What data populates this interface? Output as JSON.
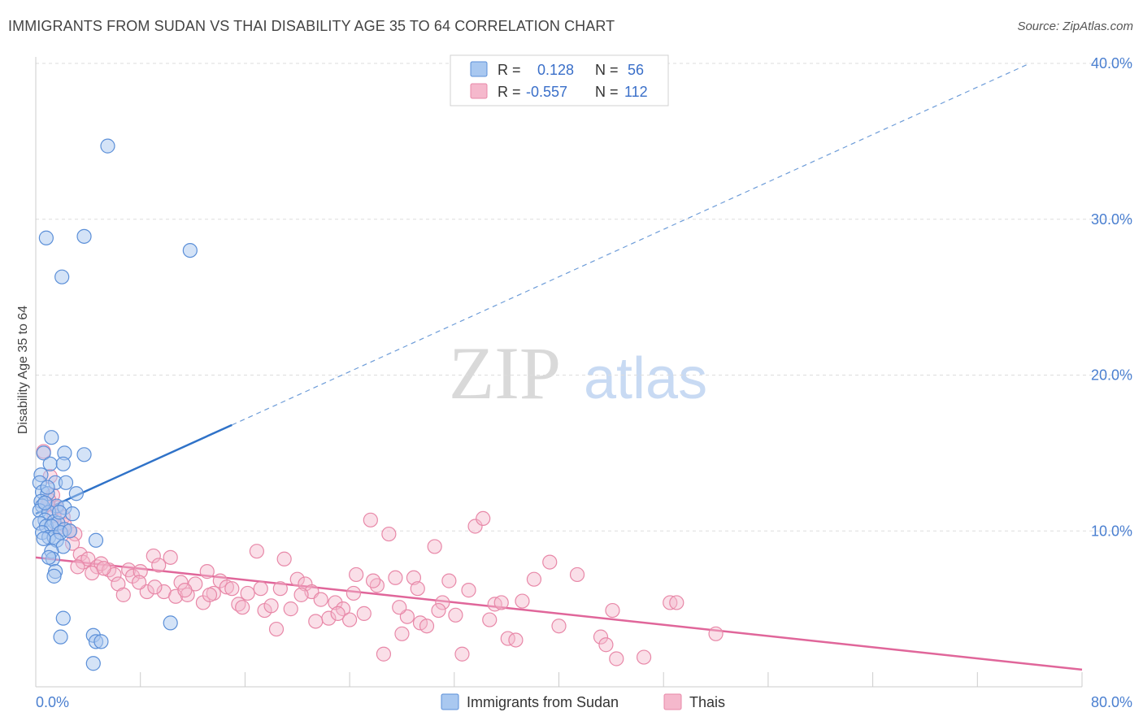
{
  "header": {
    "title": "IMMIGRANTS FROM SUDAN VS THAI DISABILITY AGE 35 TO 64 CORRELATION CHART",
    "source": "Source: ZipAtlas.com"
  },
  "watermark": {
    "zip": "ZIP",
    "atlas": "atlas"
  },
  "colors": {
    "sudan_fill": "#a9c8f0",
    "sudan_stroke": "#5b8fd8",
    "sudan_line": "#2f72c8",
    "thai_fill": "#f5b8cc",
    "thai_stroke": "#e888a8",
    "thai_line": "#e0669a",
    "grid": "#dddddd",
    "tick_text": "#4a7fd0"
  },
  "legend": {
    "rows": [
      {
        "r_label": "R =",
        "r_value": "0.128",
        "n_label": "N =",
        "n_value": "56"
      },
      {
        "r_label": "R =",
        "r_value": "-0.557",
        "n_label": "N =",
        "n_value": "112"
      }
    ]
  },
  "chart_data": {
    "type": "scatter",
    "title": "IMMIGRANTS FROM SUDAN VS THAI DISABILITY AGE 35 TO 64 CORRELATION CHART",
    "xlabel": "",
    "ylabel": "Disability Age 35 to 64",
    "xlim": [
      0,
      80
    ],
    "ylim": [
      0,
      40
    ],
    "x_tick_labels": [
      "0.0%",
      "80.0%"
    ],
    "y_ticks": [
      10,
      20,
      30,
      40
    ],
    "y_tick_labels": [
      "10.0%",
      "20.0%",
      "30.0%",
      "40.0%"
    ],
    "grid": true,
    "legend_position": "top-center",
    "series": [
      {
        "name": "Immigrants from Sudan",
        "trend": {
          "solid": [
            [
              0,
              11.1
            ],
            [
              15,
              16.8
            ]
          ],
          "dashed": [
            [
              15,
              16.8
            ],
            [
              76,
              40.0
            ]
          ]
        },
        "points": [
          [
            5.5,
            34.7
          ],
          [
            0.8,
            28.8
          ],
          [
            3.7,
            28.9
          ],
          [
            11.8,
            28.0
          ],
          [
            2.0,
            26.3
          ],
          [
            1.2,
            16.0
          ],
          [
            0.6,
            15.0
          ],
          [
            2.2,
            15.0
          ],
          [
            3.7,
            14.9
          ],
          [
            1.1,
            14.3
          ],
          [
            2.1,
            14.3
          ],
          [
            0.4,
            13.6
          ],
          [
            0.3,
            13.1
          ],
          [
            1.5,
            13.1
          ],
          [
            2.3,
            13.1
          ],
          [
            0.5,
            12.5
          ],
          [
            0.9,
            12.4
          ],
          [
            3.1,
            12.4
          ],
          [
            0.4,
            11.9
          ],
          [
            0.5,
            11.6
          ],
          [
            1.6,
            11.6
          ],
          [
            2.2,
            11.5
          ],
          [
            0.3,
            11.3
          ],
          [
            1.0,
            11.2
          ],
          [
            2.8,
            11.1
          ],
          [
            0.7,
            10.7
          ],
          [
            1.4,
            10.6
          ],
          [
            0.3,
            10.5
          ],
          [
            0.8,
            10.3
          ],
          [
            1.7,
            10.5
          ],
          [
            1.2,
            10.3
          ],
          [
            2.2,
            10.1
          ],
          [
            0.5,
            9.9
          ],
          [
            1.0,
            9.6
          ],
          [
            1.4,
            9.6
          ],
          [
            1.9,
            9.9
          ],
          [
            0.6,
            9.5
          ],
          [
            1.6,
            9.4
          ],
          [
            4.6,
            9.4
          ],
          [
            2.1,
            9.0
          ],
          [
            1.2,
            8.7
          ],
          [
            1.3,
            8.2
          ],
          [
            1.0,
            8.3
          ],
          [
            1.5,
            7.4
          ],
          [
            1.4,
            7.1
          ],
          [
            2.1,
            4.4
          ],
          [
            10.3,
            4.1
          ],
          [
            4.4,
            3.3
          ],
          [
            1.9,
            3.2
          ],
          [
            4.6,
            2.9
          ],
          [
            5.0,
            2.9
          ],
          [
            4.4,
            1.5
          ],
          [
            0.7,
            11.8
          ],
          [
            1.8,
            11.2
          ],
          [
            0.9,
            12.8
          ],
          [
            2.6,
            10.0
          ]
        ]
      },
      {
        "name": "Thais",
        "trend": {
          "solid": [
            [
              0,
              8.3
            ],
            [
              80,
              1.1
            ]
          ]
        },
        "points": [
          [
            0.6,
            15.1
          ],
          [
            1.1,
            13.5
          ],
          [
            1.3,
            12.3
          ],
          [
            1.0,
            12.0
          ],
          [
            1.6,
            11.5
          ],
          [
            2.1,
            10.9
          ],
          [
            1.7,
            10.2
          ],
          [
            3.0,
            9.8
          ],
          [
            2.8,
            9.2
          ],
          [
            3.4,
            8.5
          ],
          [
            3.6,
            8.0
          ],
          [
            4.0,
            8.2
          ],
          [
            4.7,
            7.7
          ],
          [
            5.0,
            7.9
          ],
          [
            5.6,
            7.5
          ],
          [
            6.0,
            7.2
          ],
          [
            6.3,
            6.6
          ],
          [
            6.7,
            5.9
          ],
          [
            7.1,
            7.5
          ],
          [
            7.4,
            7.1
          ],
          [
            8.0,
            7.4
          ],
          [
            8.5,
            6.1
          ],
          [
            9.0,
            8.4
          ],
          [
            9.4,
            7.8
          ],
          [
            9.8,
            6.1
          ],
          [
            10.3,
            8.3
          ],
          [
            10.7,
            5.8
          ],
          [
            11.1,
            6.7
          ],
          [
            11.6,
            5.9
          ],
          [
            12.2,
            6.6
          ],
          [
            12.8,
            5.4
          ],
          [
            13.1,
            7.4
          ],
          [
            13.6,
            6.0
          ],
          [
            14.1,
            6.8
          ],
          [
            14.6,
            6.4
          ],
          [
            15.0,
            6.3
          ],
          [
            15.5,
            5.3
          ],
          [
            16.2,
            6.0
          ],
          [
            16.9,
            8.7
          ],
          [
            17.5,
            4.9
          ],
          [
            18.0,
            5.2
          ],
          [
            18.4,
            3.7
          ],
          [
            19.0,
            8.2
          ],
          [
            19.5,
            5.0
          ],
          [
            20.0,
            6.9
          ],
          [
            20.6,
            6.6
          ],
          [
            21.1,
            6.1
          ],
          [
            21.8,
            5.6
          ],
          [
            22.4,
            4.4
          ],
          [
            22.9,
            5.4
          ],
          [
            23.5,
            5.0
          ],
          [
            24.0,
            4.3
          ],
          [
            24.5,
            7.2
          ],
          [
            25.1,
            4.7
          ],
          [
            25.6,
            10.7
          ],
          [
            26.1,
            6.5
          ],
          [
            26.6,
            2.1
          ],
          [
            27.0,
            9.8
          ],
          [
            27.5,
            7.0
          ],
          [
            28.0,
            3.4
          ],
          [
            28.4,
            4.5
          ],
          [
            28.9,
            7.0
          ],
          [
            29.4,
            4.1
          ],
          [
            29.9,
            3.9
          ],
          [
            30.5,
            9.0
          ],
          [
            31.1,
            5.4
          ],
          [
            31.6,
            6.8
          ],
          [
            32.1,
            4.6
          ],
          [
            32.6,
            2.1
          ],
          [
            33.1,
            6.2
          ],
          [
            33.6,
            10.3
          ],
          [
            34.2,
            10.8
          ],
          [
            34.7,
            4.3
          ],
          [
            35.1,
            5.3
          ],
          [
            35.6,
            5.4
          ],
          [
            36.1,
            3.1
          ],
          [
            36.7,
            3.0
          ],
          [
            37.2,
            5.5
          ],
          [
            38.1,
            6.9
          ],
          [
            39.3,
            8.0
          ],
          [
            40.0,
            3.9
          ],
          [
            41.4,
            7.2
          ],
          [
            43.2,
            3.2
          ],
          [
            43.6,
            2.7
          ],
          [
            44.1,
            4.9
          ],
          [
            44.4,
            1.8
          ],
          [
            46.5,
            1.9
          ],
          [
            48.5,
            5.4
          ],
          [
            49.0,
            5.4
          ],
          [
            52.0,
            3.4
          ],
          [
            1.4,
            11.0
          ],
          [
            2.2,
            10.4
          ],
          [
            0.9,
            11.7
          ],
          [
            3.2,
            7.7
          ],
          [
            4.3,
            7.3
          ],
          [
            5.2,
            7.6
          ],
          [
            7.9,
            6.7
          ],
          [
            9.1,
            6.4
          ],
          [
            11.4,
            6.2
          ],
          [
            13.3,
            5.9
          ],
          [
            15.8,
            5.1
          ],
          [
            17.2,
            6.3
          ],
          [
            18.7,
            6.3
          ],
          [
            20.3,
            5.9
          ],
          [
            21.4,
            4.2
          ],
          [
            23.1,
            4.7
          ],
          [
            24.3,
            6.0
          ],
          [
            25.8,
            6.8
          ],
          [
            27.8,
            5.1
          ],
          [
            29.2,
            6.3
          ],
          [
            30.8,
            4.9
          ],
          [
            2.6,
            10.0
          ]
        ]
      }
    ]
  },
  "bottom_legend": [
    {
      "label": "Immigrants from Sudan"
    },
    {
      "label": "Thais"
    }
  ]
}
